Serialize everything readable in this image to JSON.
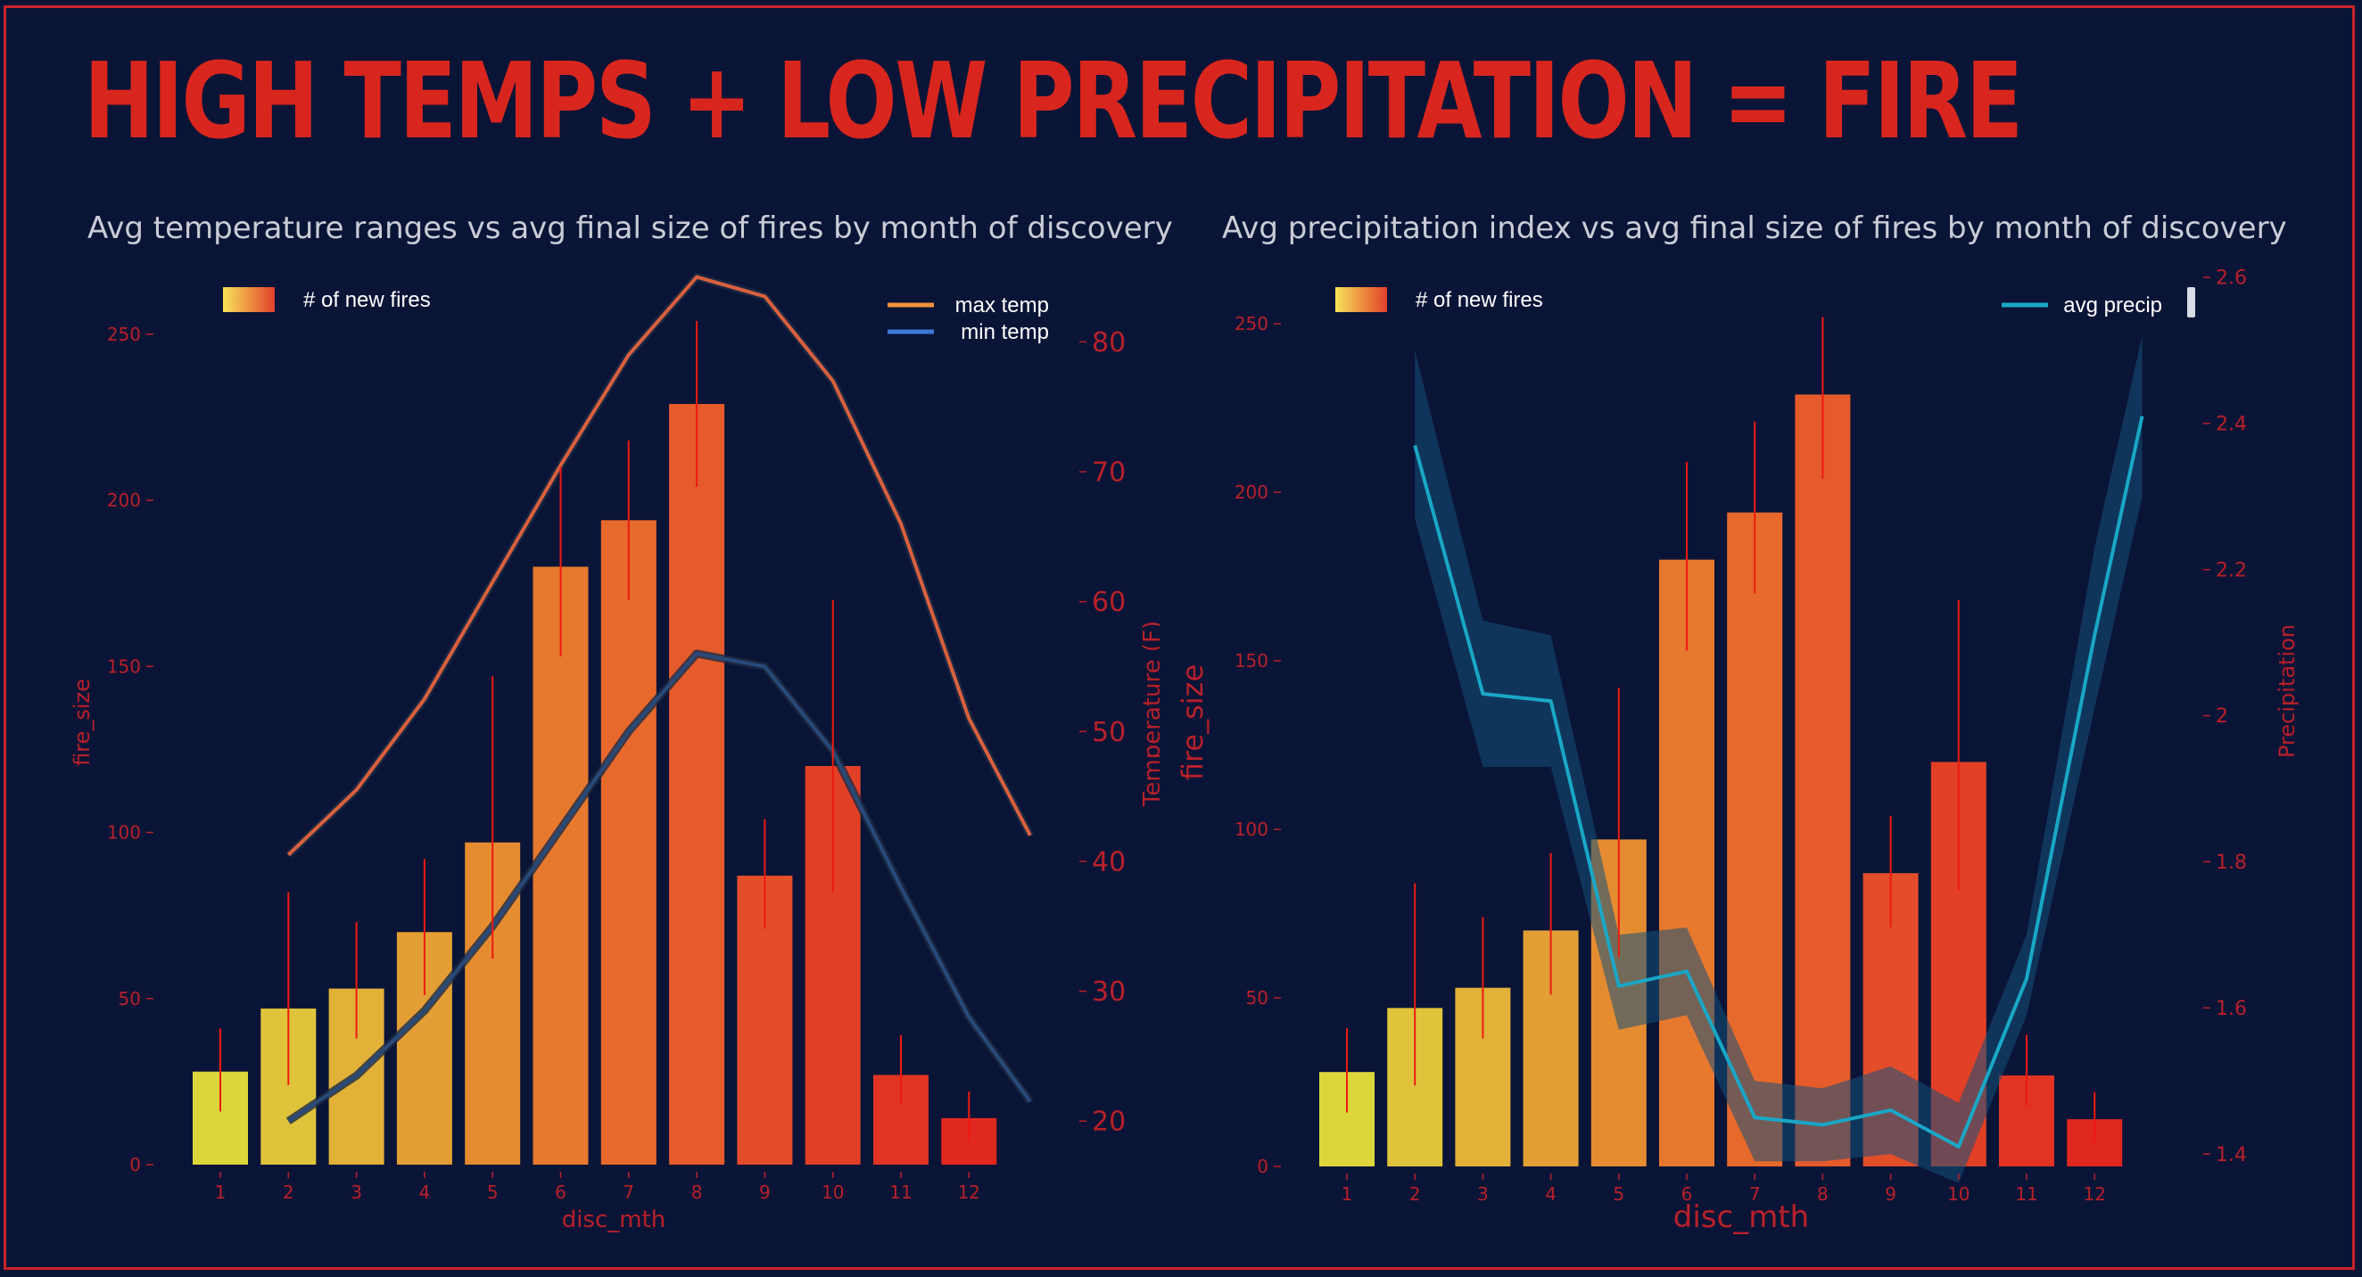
{
  "page_title": "HIGH TEMPS + LOW PRECIPITATION = FIRE",
  "colors": {
    "background": "#0a1436",
    "accent_red": "#d8261e",
    "axis_red": "#b8202a",
    "max_temp_line": "#d9603e",
    "min_temp_line": "#274a7a",
    "precip_line": "#1aa7c6",
    "precip_band": "#16507a",
    "legend_max_temp": "#f0923a",
    "legend_min_temp": "#3a7bd5",
    "bar_gradient": [
      "#dcd63c",
      "#e3a336",
      "#e8702c",
      "#e2492a",
      "#e0281f"
    ]
  },
  "chart_data": [
    {
      "type": "bar",
      "title": "Avg temperature ranges vs avg final size of fires by month of discovery",
      "xlabel": "disc_mth",
      "ylabel": "fire_size",
      "categories": [
        "1",
        "2",
        "3",
        "4",
        "5",
        "6",
        "7",
        "8",
        "9",
        "10",
        "11",
        "12"
      ],
      "values": [
        28,
        47,
        53,
        70,
        97,
        180,
        194,
        229,
        87,
        120,
        27,
        14
      ],
      "error_low": [
        16,
        24,
        38,
        51,
        62,
        153,
        170,
        204,
        71,
        82,
        18,
        7
      ],
      "error_high": [
        41,
        82,
        73,
        92,
        147,
        210,
        218,
        254,
        104,
        170,
        39,
        22
      ],
      "ylim": [
        0,
        260
      ],
      "yticks": [
        0,
        50,
        100,
        150,
        200,
        250
      ],
      "bar_legend": "# of new fires",
      "secondary_axis": {
        "label": "Temperature (F)",
        "ylim": [
          15,
          86
        ],
        "ticks": [
          20,
          30,
          40,
          50,
          60,
          70,
          80
        ]
      },
      "series": [
        {
          "name": "max temp",
          "x": [
            2,
            3,
            4,
            5,
            6,
            7,
            8,
            9,
            10,
            11,
            12,
            12.9
          ],
          "values": [
            40.5,
            45.5,
            52.5,
            61.5,
            70.5,
            79,
            85,
            83.5,
            77,
            66,
            51,
            42
          ]
        },
        {
          "name": "min temp",
          "x": [
            2,
            3,
            4,
            5,
            6,
            7,
            8,
            9,
            10,
            11,
            12,
            12.9
          ],
          "values": [
            20,
            23.5,
            28.5,
            35,
            42.5,
            50,
            56,
            55,
            48.5,
            38,
            28,
            21.5
          ]
        }
      ],
      "legend_position": "top-right"
    },
    {
      "type": "bar",
      "title": "Avg precipitation index vs avg final size of fires by month of discovery",
      "xlabel": "disc_mth",
      "ylabel": "fire_size",
      "categories": [
        "1",
        "2",
        "3",
        "4",
        "5",
        "6",
        "7",
        "8",
        "9",
        "10",
        "11",
        "12"
      ],
      "values": [
        28,
        47,
        53,
        70,
        97,
        180,
        194,
        229,
        87,
        120,
        27,
        14
      ],
      "error_low": [
        16,
        24,
        38,
        51,
        62,
        153,
        170,
        204,
        71,
        82,
        18,
        7
      ],
      "error_high": [
        41,
        84,
        74,
        93,
        142,
        209,
        221,
        252,
        104,
        168,
        39,
        22
      ],
      "ylim": [
        0,
        260
      ],
      "yticks": [
        0,
        50,
        100,
        150,
        200,
        250
      ],
      "bar_legend": "# of new fires",
      "secondary_axis": {
        "label": "Precipitation",
        "ylim": [
          1.3,
          2.6
        ],
        "ticks": [
          1.4,
          1.6,
          1.8,
          2.0,
          2.2,
          2.4,
          2.6
        ]
      },
      "series": [
        {
          "name": "avg precip",
          "x": [
            2,
            3,
            4,
            5,
            6,
            7,
            8,
            9,
            10,
            11,
            12,
            12.7
          ],
          "values": [
            2.37,
            2.03,
            2.02,
            1.63,
            1.65,
            1.45,
            1.44,
            1.46,
            1.41,
            1.64,
            2.11,
            2.41
          ],
          "ci_low": [
            2.27,
            1.93,
            1.93,
            1.57,
            1.59,
            1.39,
            1.39,
            1.4,
            1.36,
            1.59,
            2.01,
            2.3
          ],
          "ci_high": [
            2.5,
            2.13,
            2.11,
            1.7,
            1.71,
            1.5,
            1.49,
            1.52,
            1.47,
            1.7,
            2.23,
            2.52
          ]
        }
      ],
      "legend_position": "top-right"
    }
  ]
}
